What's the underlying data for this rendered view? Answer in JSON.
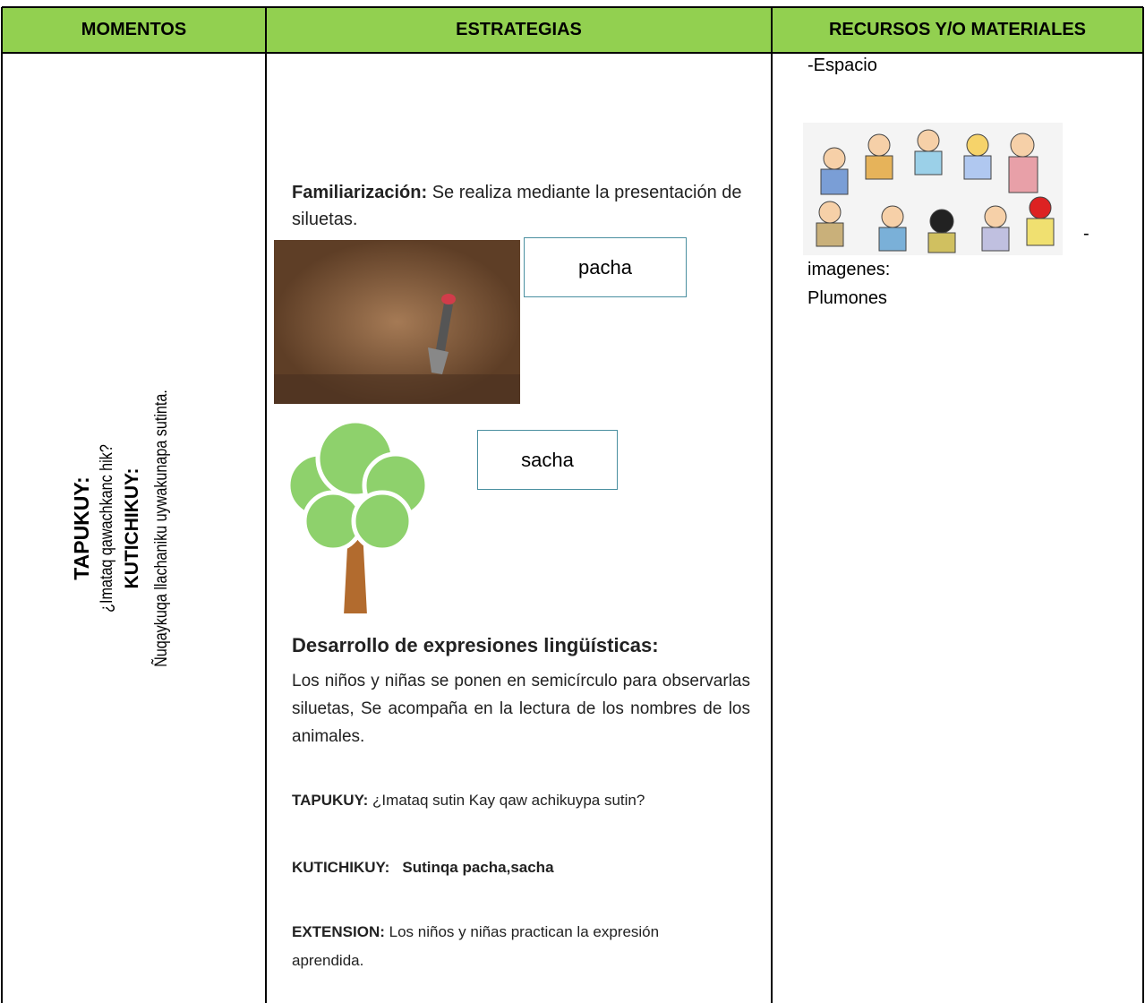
{
  "table": {
    "headers": [
      "MOMENTOS",
      "ESTRATEGIAS",
      "RECURSOS Y/O MATERIALES"
    ],
    "moments": {
      "q_label": "TAPUKUY:",
      "q_text": "¿Imataq qawachkanc hik?",
      "a_label": "KUTICHIKUY:",
      "a_text": "Ñuqaykuqa llachaniku uywakunapa sutinta."
    },
    "strategies": {
      "fam_label": "Familiarización:",
      "fam_text": "Se realiza mediante la presentación de siluetas.",
      "word1": "pacha",
      "word2": "sacha",
      "dev_label": "Desarrollo de expresiones lingüísticas:",
      "dev_text": "Los niños y niñas se ponen en semicírculo para observarlas siluetas, Se acompaña en la lectura de los nombres de los animales.",
      "q_label": "TAPUKUY:",
      "q_text": "¿Imataq sutin Kay qaw achikuypa sutin?",
      "a_label": "KUTICHIKUY:",
      "a_text": "Sutinqa pacha,sacha",
      "ext_label": "EXTENSION:",
      "ext_text": "Los niños y niñas practican la expresión aprendida."
    },
    "resources": {
      "item1": "-Espacio",
      "dash": "-",
      "item2": "imagenes:",
      "item3": "Plumones"
    }
  }
}
